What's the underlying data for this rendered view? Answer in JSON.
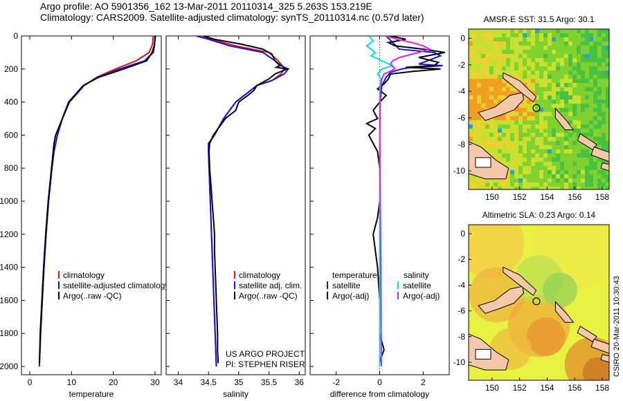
{
  "header": {
    "line1": "Argo profile: AO 5901356_162 13-Mar-2011 20110314_325 5.263S 153.219E",
    "line2": "Climatology: CARS2009. Satellite-adjusted climatology: synTS_20110314.nc (0.57d later)"
  },
  "side_label": "CSIRO 20-Mar-2011 10:30:43",
  "colors": {
    "climatology": "#e01010",
    "satellite": "#1010e0",
    "argo": "#000000",
    "sal_satellite": "#00e0e0",
    "sal_argo": "#e020e0"
  },
  "chart_data": [
    {
      "id": "temperature",
      "type": "line",
      "xlabel": "temperature",
      "ylabel": "",
      "xlim": [
        -2,
        31.5
      ],
      "ylim": [
        2050,
        0
      ],
      "xticks": [
        "0",
        "10",
        "20",
        "30"
      ],
      "xtick_values": [
        0,
        10,
        20,
        30
      ],
      "yticks": [
        "0",
        "200",
        "400",
        "600",
        "800",
        "1000",
        "1200",
        "1400",
        "1600",
        "1800",
        "2000"
      ],
      "ytick_values": [
        0,
        200,
        400,
        600,
        800,
        1000,
        1200,
        1400,
        1600,
        1800,
        2000
      ],
      "legend": [
        "climatology",
        "satellite-adjusted climatology",
        "Argo(..raw -QC)"
      ],
      "series": [
        {
          "name": "climatology",
          "color": "red",
          "depth": [
            0,
            50,
            100,
            150,
            200,
            250,
            300,
            400,
            500,
            600,
            700,
            800,
            1000,
            1200,
            1400,
            1600,
            1800,
            2000
          ],
          "values": [
            29.6,
            29.4,
            28.6,
            25.5,
            20.5,
            16.0,
            13.0,
            9.5,
            7.8,
            6.6,
            5.8,
            5.3,
            4.5,
            3.9,
            3.4,
            3.0,
            2.6,
            2.3
          ]
        },
        {
          "name": "satellite-adjusted climatology",
          "color": "blue",
          "depth": [
            0,
            50,
            100,
            150,
            200,
            250,
            300,
            400,
            500,
            600,
            700,
            800,
            1000,
            1200,
            1400,
            1600,
            1800,
            2000
          ],
          "values": [
            30.0,
            29.9,
            29.6,
            27.5,
            21.5,
            16.3,
            13.0,
            9.5,
            7.8,
            6.6,
            5.8,
            5.3,
            4.5,
            3.9,
            3.4,
            3.0,
            2.6,
            2.3
          ]
        },
        {
          "name": "Argo(..raw -QC)",
          "color": "black",
          "depth": [
            0,
            20,
            60,
            100,
            150,
            200,
            250,
            300,
            400,
            500,
            600,
            650,
            700,
            800,
            1000,
            1200,
            1400,
            1600,
            1800,
            1980
          ],
          "values": [
            30.1,
            30.0,
            29.8,
            29.3,
            28.0,
            22.5,
            16.5,
            12.8,
            9.3,
            7.8,
            6.2,
            5.8,
            5.6,
            5.2,
            4.4,
            3.8,
            3.3,
            2.9,
            2.5,
            2.3
          ]
        }
      ]
    },
    {
      "id": "salinity",
      "type": "line",
      "xlabel": "salinity",
      "ylabel": "",
      "xlim": [
        33.8,
        36.1
      ],
      "ylim": [
        2050,
        0
      ],
      "xticks": [
        "34",
        "34.5",
        "35",
        "35.5",
        "36"
      ],
      "xtick_values": [
        34,
        34.5,
        35,
        35.5,
        36
      ],
      "legend": [
        "climatology",
        "satellite adj. clim.",
        "Argo(..raw -QC)"
      ],
      "annotation": [
        "US ARGO PROJECT",
        "PI: STEPHEN RISER"
      ],
      "series": [
        {
          "name": "climatology",
          "color": "red",
          "depth": [
            0,
            20,
            60,
            100,
            150,
            180,
            200,
            230,
            270,
            300,
            400,
            500,
            600,
            650,
            700,
            800,
            1000,
            1200,
            1400,
            1600,
            1800,
            2000
          ],
          "values": [
            34.4,
            34.55,
            34.95,
            35.5,
            35.65,
            35.72,
            35.75,
            35.7,
            35.55,
            35.3,
            34.95,
            34.75,
            34.6,
            34.5,
            34.5,
            34.51,
            34.53,
            34.55,
            34.57,
            34.59,
            34.61,
            34.63
          ]
        },
        {
          "name": "satellite adj. clim.",
          "color": "blue",
          "depth": [
            0,
            20,
            60,
            100,
            150,
            180,
            200,
            230,
            270,
            300,
            400,
            500,
            600,
            650,
            700,
            800,
            1000,
            1200,
            1400,
            1600,
            1800,
            2000
          ],
          "values": [
            34.3,
            34.5,
            34.85,
            35.4,
            35.6,
            35.7,
            35.82,
            35.75,
            35.55,
            35.3,
            34.95,
            34.75,
            34.6,
            34.5,
            34.5,
            34.51,
            34.53,
            34.55,
            34.57,
            34.59,
            34.61,
            34.63
          ]
        },
        {
          "name": "Argo(..raw -QC)",
          "color": "black",
          "depth": [
            0,
            20,
            50,
            80,
            110,
            150,
            180,
            190,
            200,
            215,
            230,
            260,
            300,
            330,
            360,
            400,
            450,
            500,
            550,
            600,
            650,
            700,
            800,
            900,
            1000,
            1100,
            1200,
            1300,
            1400,
            1500,
            1600,
            1700,
            1800,
            1900,
            1980
          ],
          "values": [
            34.42,
            34.6,
            35.05,
            35.4,
            35.55,
            35.6,
            35.68,
            35.62,
            35.8,
            35.7,
            35.6,
            35.5,
            35.3,
            35.25,
            35.15,
            35.0,
            34.95,
            34.78,
            34.68,
            34.58,
            34.52,
            34.51,
            34.52,
            34.54,
            34.56,
            34.58,
            34.6,
            34.6,
            34.61,
            34.62,
            34.63,
            34.64,
            34.65,
            34.65,
            34.66
          ]
        }
      ]
    },
    {
      "id": "difference",
      "type": "line",
      "xlabel": "difference from climatology",
      "ylabel": "",
      "xlim": [
        -3.2,
        3.2
      ],
      "ylim": [
        2050,
        0
      ],
      "xticks": [
        "-2",
        "0",
        "2"
      ],
      "xtick_values": [
        -2,
        0,
        2
      ],
      "legend_left_title": "temperature",
      "legend_right_title": "salinity",
      "legend_left": [
        "satellite",
        "Argo(-adj)"
      ],
      "legend_right": [
        "satellite",
        "Argo(-adj)"
      ],
      "series": [
        {
          "name": "temperature satellite",
          "color": "blue",
          "depth": [
            0,
            40,
            80,
            100,
            120,
            150,
            170,
            180,
            190,
            200,
            220,
            250,
            300,
            400,
            600,
            800,
            1000,
            1200,
            1400,
            1600,
            1800,
            2000
          ],
          "values": [
            0.3,
            0.6,
            0.9,
            2.5,
            2.8,
            2.2,
            1.8,
            2.9,
            1.5,
            1.0,
            0.5,
            0.3,
            0.1,
            0.02,
            0,
            0,
            0,
            0,
            0,
            0,
            0,
            0
          ]
        },
        {
          "name": "temperature Argo(-adj)",
          "color": "black",
          "depth": [
            0,
            20,
            40,
            60,
            80,
            100,
            130,
            160,
            180,
            190,
            200,
            215,
            230,
            260,
            290,
            320,
            360,
            400,
            450,
            500,
            530,
            560,
            600,
            650,
            700,
            800,
            1000,
            1100,
            1200,
            1400,
            1600,
            1800,
            1850,
            1900,
            1950,
            1980
          ],
          "values": [
            0.5,
            1.2,
            0.4,
            0.7,
            2.0,
            3.0,
            1.8,
            2.7,
            2.5,
            1.2,
            2.8,
            1.5,
            0.5,
            0.4,
            0.2,
            -0.1,
            0.3,
            0.0,
            -0.3,
            -0.1,
            -0.6,
            -0.2,
            -0.5,
            -0.3,
            -0.1,
            0,
            0,
            -0.1,
            -0.3,
            -0.1,
            0,
            0,
            0.1,
            0.2,
            0.05,
            0
          ]
        },
        {
          "name": "salinity satellite",
          "color": "cyan",
          "depth": [
            0,
            30,
            60,
            100,
            120,
            150,
            180,
            200,
            230,
            260,
            300,
            400,
            600,
            800,
            1000,
            1200,
            1400,
            1600,
            1800,
            2000
          ],
          "values": [
            -0.5,
            -0.3,
            -0.6,
            -0.2,
            -0.4,
            0.1,
            0.6,
            0.1,
            -0.1,
            0.05,
            0.02,
            0,
            0,
            0,
            0,
            0,
            0,
            0,
            0,
            0
          ]
        },
        {
          "name": "salinity Argo(-adj)",
          "color": "magenta",
          "depth": [
            0,
            20,
            40,
            60,
            80,
            100,
            130,
            150,
            170,
            200,
            230,
            260,
            300,
            400,
            600,
            800,
            1000,
            1200,
            1400,
            1600,
            1800,
            2000
          ],
          "values": [
            0.3,
            0.8,
            1.5,
            2.0,
            2.3,
            1.8,
            0.9,
            0.6,
            0.5,
            0.7,
            0.2,
            0.1,
            0.05,
            0.02,
            0.01,
            0.02,
            0.03,
            0.04,
            0.05,
            0.06,
            0.07,
            0.08
          ]
        }
      ]
    },
    {
      "id": "sst_map",
      "type": "heatmap",
      "title": "AMSR-E SST: 31.5 Argo: 30.1",
      "xlim": [
        148.3,
        158.5
      ],
      "ylim": [
        -11.4,
        0.7
      ],
      "xticks": [
        "150",
        "152",
        "154",
        "156",
        "158"
      ],
      "xtick_values": [
        150,
        152,
        154,
        156,
        158
      ],
      "yticks": [
        "0",
        "-2",
        "-4",
        "-6",
        "-8",
        "-10"
      ],
      "ytick_values": [
        0,
        -2,
        -4,
        -6,
        -8,
        -10
      ],
      "marker": {
        "lon": 153.22,
        "lat": -5.26
      }
    },
    {
      "id": "sla_map",
      "type": "heatmap",
      "title": "Altimetric SLA: 0.23 Argo: 0.14",
      "xlim": [
        148.3,
        158.5
      ],
      "ylim": [
        -11.4,
        0.7
      ],
      "xticks": [
        "150",
        "152",
        "154",
        "156",
        "158"
      ],
      "xtick_values": [
        150,
        152,
        154,
        156,
        158
      ],
      "yticks": [
        "0",
        "-2",
        "-4",
        "-6",
        "-8",
        "-10"
      ],
      "ytick_values": [
        0,
        -2,
        -4,
        -6,
        -8,
        -10
      ],
      "marker": {
        "lon": 153.22,
        "lat": -5.26
      }
    }
  ]
}
